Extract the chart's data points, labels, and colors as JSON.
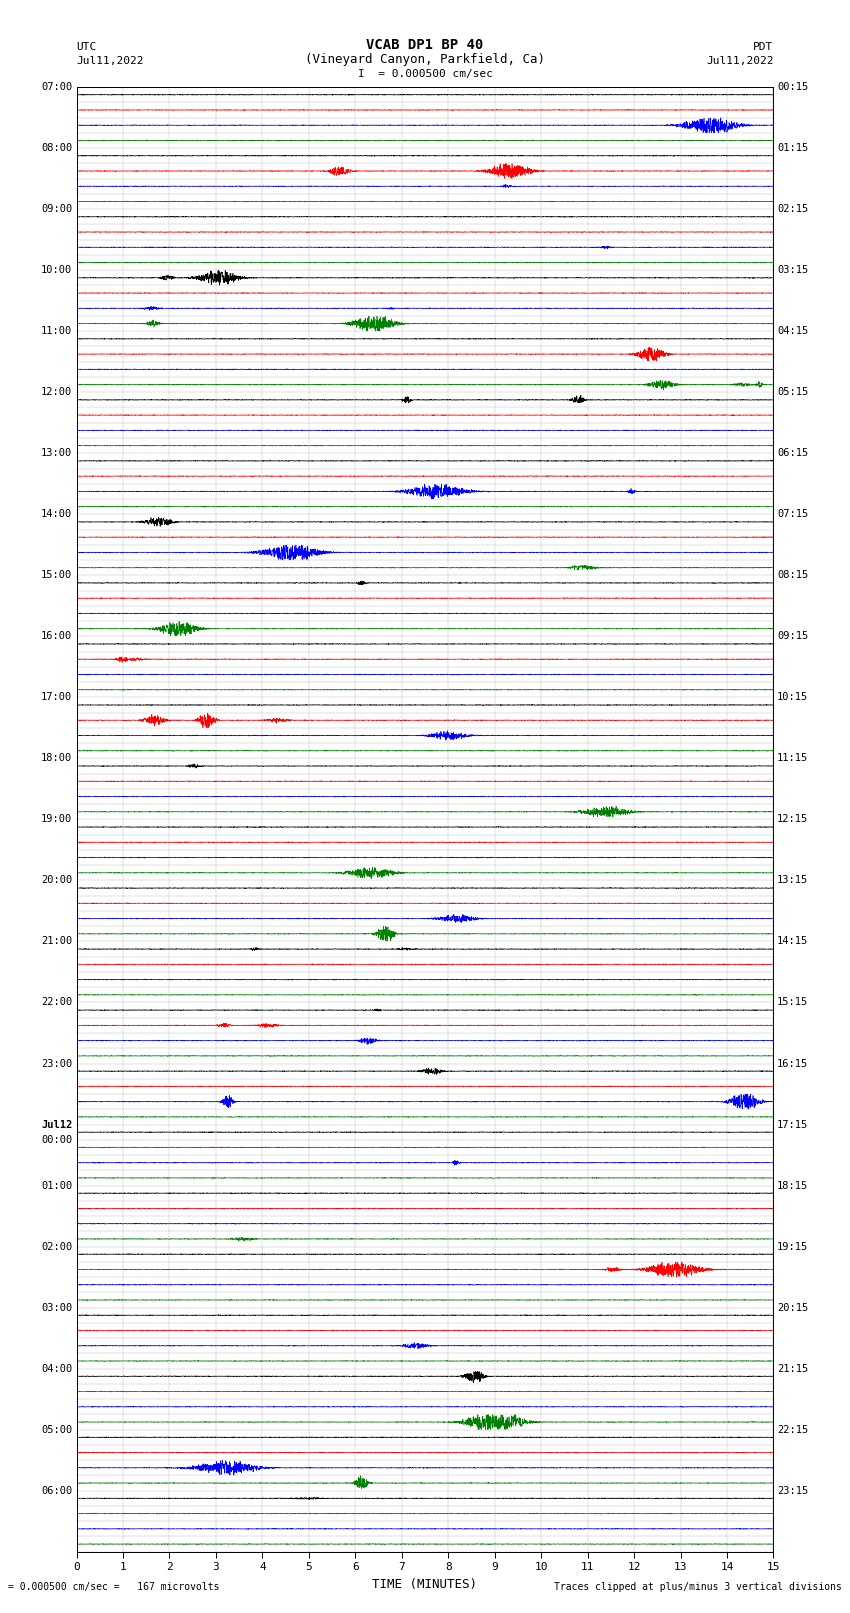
{
  "title_line1": "VCAB DP1 BP 40",
  "title_line2": "(Vineyard Canyon, Parkfield, Ca)",
  "scale_label": "I  = 0.000500 cm/sec",
  "left_header": "UTC",
  "left_date": "Jul11,2022",
  "right_header": "PDT",
  "right_date": "Jul11,2022",
  "xlabel": "TIME (MINUTES)",
  "footer_left": "= 0.000500 cm/sec =   167 microvolts",
  "footer_right": "Traces clipped at plus/minus 3 vertical divisions",
  "utc_times": [
    "07:00",
    "",
    "",
    "",
    "08:00",
    "",
    "",
    "",
    "09:00",
    "",
    "",
    "",
    "10:00",
    "",
    "",
    "",
    "11:00",
    "",
    "",
    "",
    "12:00",
    "",
    "",
    "",
    "13:00",
    "",
    "",
    "",
    "14:00",
    "",
    "",
    "",
    "15:00",
    "",
    "",
    "",
    "16:00",
    "",
    "",
    "",
    "17:00",
    "",
    "",
    "",
    "18:00",
    "",
    "",
    "",
    "19:00",
    "",
    "",
    "",
    "20:00",
    "",
    "",
    "",
    "21:00",
    "",
    "",
    "",
    "22:00",
    "",
    "",
    "",
    "23:00",
    "",
    "",
    "",
    "Jul12",
    "00:00",
    "",
    "",
    "01:00",
    "",
    "",
    "",
    "02:00",
    "",
    "",
    "",
    "03:00",
    "",
    "",
    "",
    "04:00",
    "",
    "",
    "",
    "05:00",
    "",
    "",
    "",
    "06:00",
    "",
    "",
    ""
  ],
  "pdt_times": [
    "00:15",
    "",
    "",
    "",
    "01:15",
    "",
    "",
    "",
    "02:15",
    "",
    "",
    "",
    "03:15",
    "",
    "",
    "",
    "04:15",
    "",
    "",
    "",
    "05:15",
    "",
    "",
    "",
    "06:15",
    "",
    "",
    "",
    "07:15",
    "",
    "",
    "",
    "08:15",
    "",
    "",
    "",
    "09:15",
    "",
    "",
    "",
    "10:15",
    "",
    "",
    "",
    "11:15",
    "",
    "",
    "",
    "12:15",
    "",
    "",
    "",
    "13:15",
    "",
    "",
    "",
    "14:15",
    "",
    "",
    "",
    "15:15",
    "",
    "",
    "",
    "16:15",
    "",
    "",
    "",
    "17:15",
    "",
    "",
    "",
    "18:15",
    "",
    "",
    "",
    "19:15",
    "",
    "",
    "",
    "20:15",
    "",
    "",
    "",
    "21:15",
    "",
    "",
    "",
    "22:15",
    "",
    "",
    "",
    "23:15",
    "",
    "",
    ""
  ],
  "n_traces": 96,
  "trace_colors": [
    "black",
    "red",
    "blue",
    "green"
  ],
  "xmin": 0,
  "xmax": 15,
  "xticks": [
    0,
    1,
    2,
    3,
    4,
    5,
    6,
    7,
    8,
    9,
    10,
    11,
    12,
    13,
    14,
    15
  ],
  "background_color": "white",
  "grid_color": "#888888",
  "base_noise": 0.008,
  "event_amplitude": 0.38
}
